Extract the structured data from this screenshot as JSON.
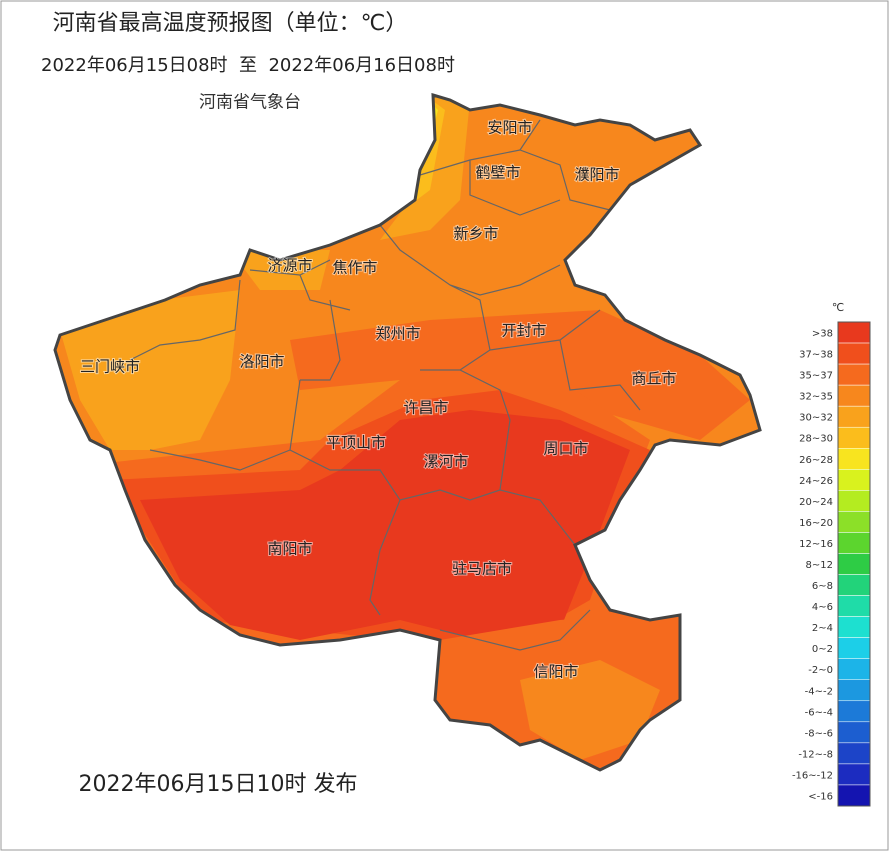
{
  "header": {
    "title": "河南省最高温度预报图（单位：℃）",
    "period": "2022年06月15日08时  至  2022年06月16日08时",
    "issuer": "河南省气象台"
  },
  "cities": [
    "安阳市",
    "鹤壁市",
    "濮阳市",
    "新乡市",
    "济源市",
    "焦作市",
    "开封市",
    "郑州市",
    "三门峡市",
    "洛阳市",
    "商丘市",
    "许昌市",
    "平顶山市",
    "漯河市",
    "周口市",
    "南阳市",
    "驻马店市",
    "信阳市"
  ],
  "legend": {
    "unit": "℃",
    "items": [
      {
        "label": ">38",
        "color": "#e8391e"
      },
      {
        "label": "37~38",
        "color": "#f04f1c"
      },
      {
        "label": "35~37",
        "color": "#f56a1e"
      },
      {
        "label": "32~35",
        "color": "#f7871d"
      },
      {
        "label": "30~32",
        "color": "#f9a21c"
      },
      {
        "label": "28~30",
        "color": "#fbbd1c"
      },
      {
        "label": "26~28",
        "color": "#f8e41f"
      },
      {
        "label": "24~26",
        "color": "#d9f21e"
      },
      {
        "label": "20~24",
        "color": "#b4ec20"
      },
      {
        "label": "16~20",
        "color": "#8ce028"
      },
      {
        "label": "12~16",
        "color": "#5cd52e"
      },
      {
        "label": "8~12",
        "color": "#2ecc45"
      },
      {
        "label": "6~8",
        "color": "#22d37a"
      },
      {
        "label": "4~6",
        "color": "#1fdca8"
      },
      {
        "label": "2~4",
        "color": "#1de0d0"
      },
      {
        "label": "0~2",
        "color": "#1ccfe8"
      },
      {
        "label": "-2~0",
        "color": "#1cb4e8"
      },
      {
        "label": "-4~-2",
        "color": "#1c98e0"
      },
      {
        "label": "-6~-4",
        "color": "#1c7ad8"
      },
      {
        "label": "-8~-6",
        "color": "#1c5ed0"
      },
      {
        "label": "-12~-8",
        "color": "#1c44c8"
      },
      {
        "label": "-16~-12",
        "color": "#1c2cc0"
      },
      {
        "label": "<-16",
        "color": "#1414b0"
      }
    ]
  },
  "footer": {
    "published": "2022年06月15日10时 发布"
  }
}
